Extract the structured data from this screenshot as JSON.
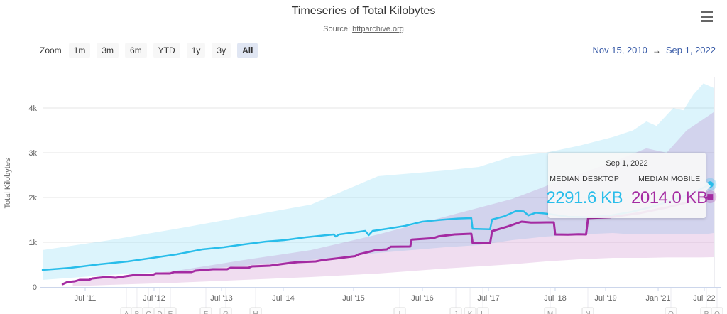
{
  "header": {
    "title": "Timeseries of Total Kilobytes",
    "subtitle_prefix": "Source: ",
    "subtitle_link": "httparchive.org"
  },
  "range_selector": {
    "zoom_label": "Zoom",
    "buttons": [
      "1m",
      "3m",
      "6m",
      "YTD",
      "1y",
      "3y",
      "All"
    ],
    "selected": "All",
    "from_date": "Nov 15, 2010",
    "arrow": "→",
    "to_date": "Sep 1, 2022"
  },
  "tooltip": {
    "date": "Sep 1, 2022",
    "series": [
      {
        "label": "MEDIAN DESKTOP",
        "value": "2291.6 KB"
      },
      {
        "label": "MEDIAN MOBILE",
        "value": "2014.0 KB"
      }
    ]
  },
  "colors": {
    "desktop": "#28bdea",
    "mobile": "#a42ba2",
    "grid": "#e6e6e6",
    "axis_line": "#ccd6eb",
    "axis_text": "#666666",
    "range_dates": "#3a5ca8",
    "selected_button_bg": "#e0e6f3",
    "button_bg": "#f7f7f7"
  },
  "chart_data": {
    "type": "line",
    "title": "Timeseries of Total Kilobytes",
    "subtitle": "Source: httparchive.org",
    "ylabel": "Total Kilobytes",
    "xlabel": "",
    "x_range": [
      "Nov 15, 2010",
      "Sep 1, 2022"
    ],
    "ylim_kb": [
      0,
      4667
    ],
    "grid": "horizontal-only",
    "legend_position": "none (values shown in shared tooltip)",
    "y_ticks": [
      {
        "label": "0",
        "kb": 0
      },
      {
        "label": "1k",
        "kb": 1000
      },
      {
        "label": "2k",
        "kb": 2000
      },
      {
        "label": "3k",
        "kb": 3000
      },
      {
        "label": "4k",
        "kb": 4000
      }
    ],
    "x_ticks": [
      {
        "label": "Jul '11",
        "f": 0.0635
      },
      {
        "label": "Jul '12",
        "f": 0.1661
      },
      {
        "label": "Jul '13",
        "f": 0.2667
      },
      {
        "label": "Jul '14",
        "f": 0.3587
      },
      {
        "label": "Jul '15",
        "f": 0.4635
      },
      {
        "label": "Jul '16",
        "f": 0.5661
      },
      {
        "label": "Jul '17",
        "f": 0.6646
      },
      {
        "label": "Jul '18",
        "f": 0.764
      },
      {
        "label": "Jul '19",
        "f": 0.8392
      },
      {
        "label": "Jan '21",
        "f": 0.9175
      },
      {
        "label": "Jul '22",
        "f": 0.9862
      }
    ],
    "series": [
      {
        "name": "Median Desktop",
        "color": "#28bdea",
        "marker": "circle",
        "final_value_kb": 2291.6,
        "points": [
          [
            0,
            381
          ],
          [
            0.042,
            429
          ],
          [
            0.085,
            508
          ],
          [
            0.127,
            571
          ],
          [
            0.164,
            651
          ],
          [
            0.2,
            730
          ],
          [
            0.238,
            841
          ],
          [
            0.27,
            889
          ],
          [
            0.3,
            952
          ],
          [
            0.333,
            1016
          ],
          [
            0.36,
            1048
          ],
          [
            0.392,
            1111
          ],
          [
            0.423,
            1159
          ],
          [
            0.434,
            1175
          ],
          [
            0.437,
            1127
          ],
          [
            0.442,
            1175
          ],
          [
            0.466,
            1222
          ],
          [
            0.481,
            1254
          ],
          [
            0.486,
            1159
          ],
          [
            0.492,
            1254
          ],
          [
            0.513,
            1300
          ],
          [
            0.54,
            1365
          ],
          [
            0.566,
            1460
          ],
          [
            0.593,
            1500
          ],
          [
            0.619,
            1530
          ],
          [
            0.639,
            1540
          ],
          [
            0.641,
            1300
          ],
          [
            0.667,
            1290
          ],
          [
            0.67,
            1510
          ],
          [
            0.688,
            1580
          ],
          [
            0.706,
            1700
          ],
          [
            0.717,
            1690
          ],
          [
            0.724,
            1600
          ],
          [
            0.735,
            1660
          ],
          [
            0.751,
            1640
          ],
          [
            0.783,
            1570
          ],
          [
            0.815,
            1560
          ],
          [
            0.847,
            1600
          ],
          [
            0.878,
            1680
          ],
          [
            0.91,
            1800
          ],
          [
            0.942,
            1950
          ],
          [
            0.968,
            2100
          ],
          [
            0.995,
            2291.6
          ]
        ]
      },
      {
        "name": "Median Mobile",
        "color": "#a42ba2",
        "marker": "square",
        "final_value_kb": 2014.0,
        "points": [
          [
            0.03,
            63
          ],
          [
            0.037,
            111
          ],
          [
            0.048,
            127
          ],
          [
            0.055,
            159
          ],
          [
            0.069,
            159
          ],
          [
            0.074,
            190
          ],
          [
            0.095,
            222
          ],
          [
            0.109,
            206
          ],
          [
            0.116,
            222
          ],
          [
            0.138,
            270
          ],
          [
            0.164,
            270
          ],
          [
            0.169,
            301
          ],
          [
            0.19,
            301
          ],
          [
            0.196,
            333
          ],
          [
            0.222,
            333
          ],
          [
            0.228,
            365
          ],
          [
            0.254,
            397
          ],
          [
            0.275,
            397
          ],
          [
            0.28,
            428
          ],
          [
            0.307,
            428
          ],
          [
            0.312,
            460
          ],
          [
            0.339,
            476
          ],
          [
            0.354,
            508
          ],
          [
            0.37,
            540
          ],
          [
            0.381,
            555
          ],
          [
            0.407,
            571
          ],
          [
            0.418,
            603
          ],
          [
            0.444,
            650
          ],
          [
            0.466,
            690
          ],
          [
            0.471,
            730
          ],
          [
            0.497,
            825
          ],
          [
            0.513,
            841
          ],
          [
            0.519,
            900
          ],
          [
            0.548,
            905
          ],
          [
            0.55,
            1060
          ],
          [
            0.582,
            1090
          ],
          [
            0.59,
            1130
          ],
          [
            0.614,
            1175
          ],
          [
            0.639,
            1190
          ],
          [
            0.641,
            984
          ],
          [
            0.667,
            980
          ],
          [
            0.67,
            1250
          ],
          [
            0.693,
            1350
          ],
          [
            0.714,
            1460
          ],
          [
            0.728,
            1440
          ],
          [
            0.751,
            1445
          ],
          [
            0.762,
            1445
          ],
          [
            0.764,
            1175
          ],
          [
            0.783,
            1170
          ],
          [
            0.799,
            1180
          ],
          [
            0.81,
            1175
          ],
          [
            0.813,
            1540
          ],
          [
            0.847,
            1560
          ],
          [
            0.889,
            1650
          ],
          [
            0.931,
            1780
          ],
          [
            0.963,
            1900
          ],
          [
            0.995,
            2014
          ]
        ]
      }
    ],
    "bands": [
      {
        "name": "Desktop interquartile range",
        "color": "#28bdea",
        "opacity": 0.16,
        "points": [
          [
            0,
            159,
            825
          ],
          [
            0.1,
            270,
            1048
          ],
          [
            0.2,
            349,
            1302
          ],
          [
            0.3,
            476,
            1571
          ],
          [
            0.4,
            603,
            1841
          ],
          [
            0.5,
            762,
            2476
          ],
          [
            0.6,
            889,
            2603
          ],
          [
            0.65,
            937,
            2683
          ],
          [
            0.7,
            1048,
            2921
          ],
          [
            0.75,
            1127,
            3000
          ],
          [
            0.8,
            1175,
            3159
          ],
          [
            0.85,
            1206,
            3350
          ],
          [
            0.88,
            1175,
            3500
          ],
          [
            0.9,
            1175,
            3700
          ],
          [
            0.915,
            1190,
            3600
          ],
          [
            0.94,
            1175,
            4000
          ],
          [
            0.955,
            1190,
            3950
          ],
          [
            0.97,
            1190,
            4300
          ],
          [
            0.985,
            1175,
            4550
          ],
          [
            1,
            1206,
            4450
          ]
        ]
      },
      {
        "name": "Mobile interquartile range",
        "color": "#a42ba2",
        "opacity": 0.16,
        "points": [
          [
            0.045,
            16,
            127
          ],
          [
            0.1,
            48,
            206
          ],
          [
            0.2,
            95,
            365
          ],
          [
            0.3,
            159,
            603
          ],
          [
            0.4,
            222,
            825
          ],
          [
            0.5,
            301,
            1175
          ],
          [
            0.6,
            413,
            1571
          ],
          [
            0.7,
            508,
            1968
          ],
          [
            0.75,
            571,
            2254
          ],
          [
            0.8,
            619,
            2524
          ],
          [
            0.85,
            651,
            2794
          ],
          [
            0.9,
            651,
            3100
          ],
          [
            0.93,
            660,
            3000
          ],
          [
            0.96,
            660,
            3500
          ],
          [
            0.98,
            660,
            3700
          ],
          [
            1,
            667,
            3905
          ]
        ]
      }
    ],
    "flags": [
      {
        "label": "A",
        "f": 0.1249
      },
      {
        "label": "B",
        "f": 0.1407
      },
      {
        "label": "C",
        "f": 0.1577
      },
      {
        "label": "D",
        "f": 0.1746
      },
      {
        "label": "E",
        "f": 0.1905
      },
      {
        "label": "F",
        "f": 0.2434
      },
      {
        "label": "G",
        "f": 0.273
      },
      {
        "label": "H",
        "f": 0.3175
      },
      {
        "label": "I",
        "f": 0.5323
      },
      {
        "label": "J",
        "f": 0.6159
      },
      {
        "label": "K",
        "f": 0.6371
      },
      {
        "label": "L",
        "f": 0.6561
      },
      {
        "label": "M",
        "f": 0.7566
      },
      {
        "label": "N",
        "f": 0.8127
      },
      {
        "label": "O",
        "f": 0.9365
      },
      {
        "label": "P",
        "f": 0.9894
      },
      {
        "label": "Q",
        "f": 1.0053
      }
    ]
  }
}
